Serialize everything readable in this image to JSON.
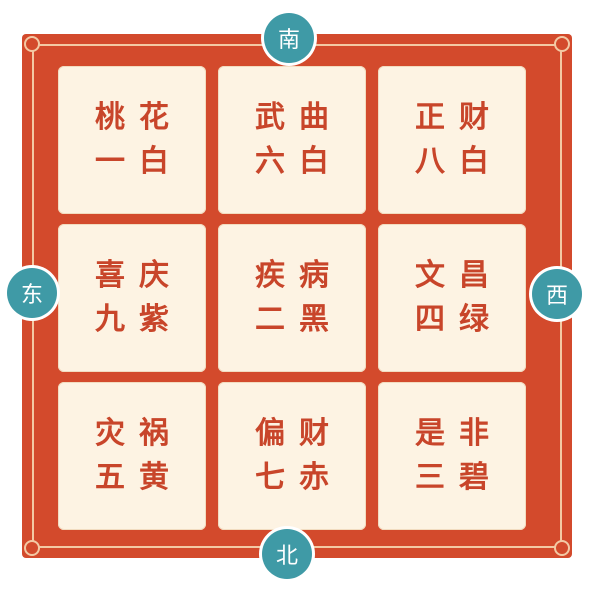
{
  "compass": {
    "south": "南",
    "north": "北",
    "east": "东",
    "west": "西"
  },
  "cells": [
    {
      "line1": "桃花",
      "line2": "一白"
    },
    {
      "line1": "武曲",
      "line2": "六白"
    },
    {
      "line1": "正财",
      "line2": "八白"
    },
    {
      "line1": "喜庆",
      "line2": "九紫"
    },
    {
      "line1": "疾病",
      "line2": "二黑"
    },
    {
      "line1": "文昌",
      "line2": "四绿"
    },
    {
      "line1": "灾祸",
      "line2": "五黄"
    },
    {
      "line1": "偏财",
      "line2": "七赤"
    },
    {
      "line1": "是非",
      "line2": "三碧"
    }
  ],
  "colors": {
    "frame": "#d34a2c",
    "cell_background": "#fdf3e3",
    "cell_text": "#c8452a",
    "compass_circle": "#3f9aa6",
    "compass_text": "#ffffff"
  }
}
